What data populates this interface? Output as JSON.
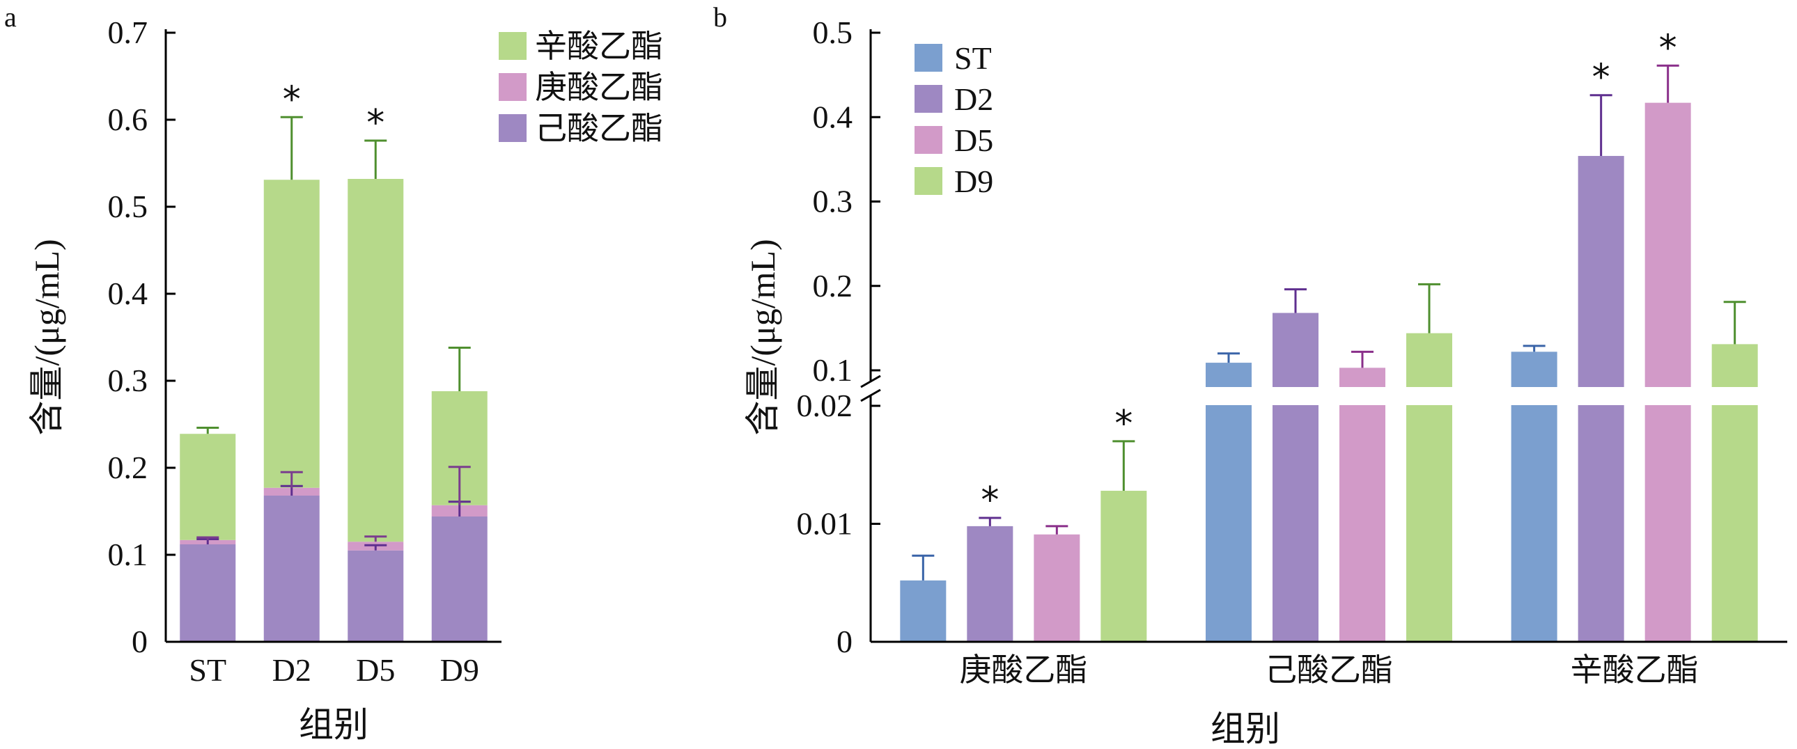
{
  "chart_data": [
    {
      "panel_label": "a",
      "type": "bar",
      "stacked": true,
      "categories": [
        "ST",
        "D2",
        "D5",
        "D9"
      ],
      "series": [
        {
          "name": "己酸乙酯",
          "color": "#9e88c2",
          "error_color": "#5f2f8f",
          "values": [
            0.112,
            0.168,
            0.105,
            0.144
          ],
          "errors": [
            0.006,
            0.011,
            0.006,
            0.017
          ]
        },
        {
          "name": "庚酸乙酯",
          "color": "#d29ac8",
          "error_color": "#7a3d8e",
          "values": [
            0.005,
            0.009,
            0.01,
            0.013
          ],
          "errors": [
            0.003,
            0.018,
            0.006,
            0.044
          ]
        },
        {
          "name": "辛酸乙酯",
          "color": "#b6d98a",
          "error_color": "#4f8f2f",
          "values": [
            0.122,
            0.354,
            0.417,
            0.131
          ],
          "errors": [
            0.007,
            0.072,
            0.044,
            0.05
          ]
        }
      ],
      "significance": [
        "",
        "*",
        "*",
        ""
      ],
      "xlabel": "组别",
      "ylabel": "含量/(μg/mL)",
      "ylim": [
        0,
        0.7
      ],
      "yticks": [
        "0",
        "0.1",
        "0.2",
        "0.3",
        "0.4",
        "0.5",
        "0.6",
        "0.7"
      ],
      "legend_order": [
        "辛酸乙酯",
        "庚酸乙酯",
        "己酸乙酯"
      ],
      "legend_position": "top-right",
      "grid": false
    },
    {
      "panel_label": "b",
      "type": "bar",
      "categories": [
        "庚酸乙酯",
        "己酸乙酯",
        "辛酸乙酯"
      ],
      "series": [
        {
          "name": "ST",
          "color": "#7b9fcf",
          "error_color": "#3a64a8",
          "values": [
            0.0052,
            0.109,
            0.122
          ],
          "errors": [
            0.0021,
            0.011,
            0.007
          ]
        },
        {
          "name": "D2",
          "color": "#9e88c2",
          "error_color": "#5f2f8f",
          "values": [
            0.0098,
            0.168,
            0.354
          ],
          "errors": [
            0.0007,
            0.028,
            0.072
          ]
        },
        {
          "name": "D5",
          "color": "#d29ac8",
          "error_color": "#8a2f8a",
          "values": [
            0.0091,
            0.103,
            0.417
          ],
          "errors": [
            0.0007,
            0.019,
            0.044
          ]
        },
        {
          "name": "D9",
          "color": "#b6d98a",
          "error_color": "#4f8f2f",
          "values": [
            0.0128,
            0.144,
            0.131
          ],
          "errors": [
            0.0042,
            0.058,
            0.05
          ]
        }
      ],
      "significance": [
        [
          "",
          "*",
          "",
          "*"
        ],
        [
          "",
          "",
          "",
          ""
        ],
        [
          "",
          "*",
          "*",
          ""
        ]
      ],
      "xlabel": "组别",
      "ylabel": "含量/(μg/mL)",
      "broken_axis": true,
      "lower_range": [
        0,
        0.02
      ],
      "upper_range": [
        0.1,
        0.5
      ],
      "lower_ticks": [
        "0",
        "0.01",
        "0.02"
      ],
      "upper_ticks": [
        "0.1",
        "0.2",
        "0.3",
        "0.4",
        "0.5"
      ],
      "legend_position": "top-left",
      "grid": false
    }
  ]
}
